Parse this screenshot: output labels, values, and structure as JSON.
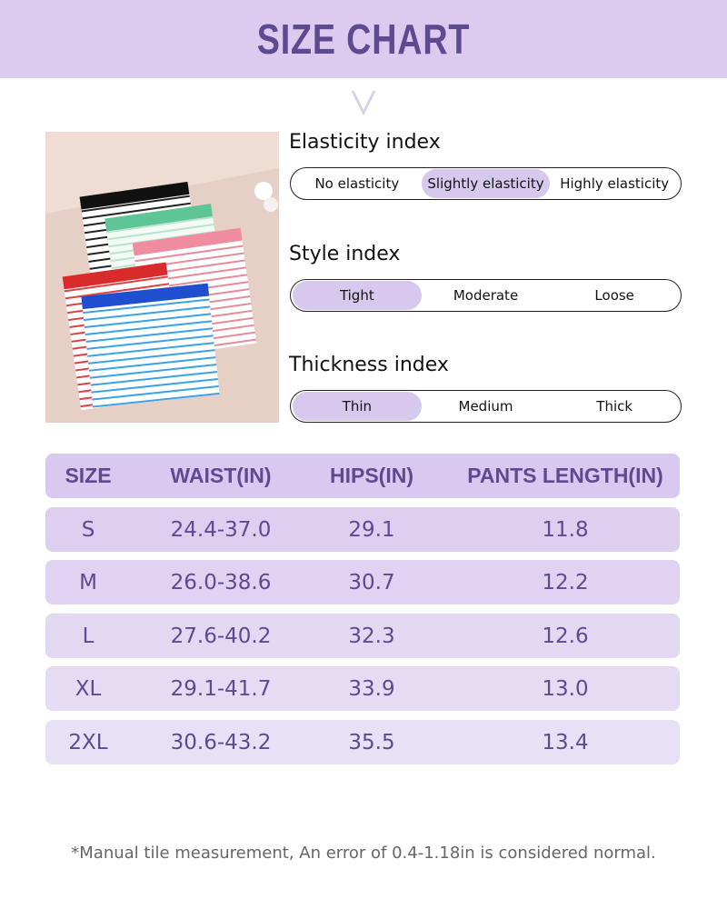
{
  "header": {
    "title": "SIZE CHART"
  },
  "colors": {
    "accent": "#5e4a90",
    "band": "#dccbef",
    "selected": "#d7c8ee"
  },
  "indices": [
    {
      "title": "Elasticity index",
      "options": [
        "No elasticity",
        "Slightly elasticity",
        "Highly elasticity"
      ],
      "selected": "Slightly elasticity"
    },
    {
      "title": "Style index",
      "options": [
        "Tight",
        "Moderate",
        "Loose"
      ],
      "selected": "Tight"
    },
    {
      "title": "Thickness index",
      "options": [
        "Thin",
        "Medium",
        "Thick"
      ],
      "selected": "Thin"
    }
  ],
  "table": {
    "headers": [
      "SIZE",
      "WAIST(IN)",
      "HIPS(IN)",
      "PANTS LENGTH(IN)"
    ],
    "rows": [
      [
        "S",
        "24.4-37.0",
        "29.1",
        "11.8"
      ],
      [
        "M",
        "26.0-38.6",
        "30.7",
        "12.2"
      ],
      [
        "L",
        "27.6-40.2",
        "32.3",
        "12.6"
      ],
      [
        "XL",
        "29.1-41.7",
        "33.9",
        "13.0"
      ],
      [
        "2XL",
        "30.6-43.2",
        "35.5",
        "13.4"
      ]
    ]
  },
  "footer": {
    "note": "*Manual tile measurement, An error of 0.4-1.18in is considered normal."
  }
}
